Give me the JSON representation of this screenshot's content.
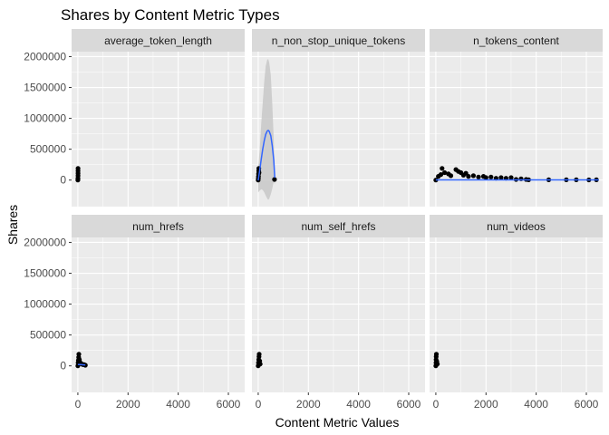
{
  "chart_data": {
    "type": "scatter",
    "title": "Shares by Content Metric Types",
    "xlabel": "Content Metric Values",
    "ylabel": "Shares",
    "xlim": [
      -250,
      6650
    ],
    "ylim": [
      -430000,
      2080000
    ],
    "x_ticks": [
      0,
      2000,
      4000,
      6000
    ],
    "y_ticks": [
      0,
      500000,
      1000000,
      1500000,
      2000000
    ],
    "layout": "facet-grid 2 rows x 3 columns, shared axes",
    "grid": true,
    "colors": {
      "panel_background": "#ebebeb",
      "strip_background": "#d9d9d9",
      "grid": "#ffffff",
      "points": "#000000",
      "smooth_line": "#3366ff",
      "confidence_band": "#c8c8c8"
    },
    "panels": [
      {
        "name": "average_token_length",
        "points": [
          [
            0,
            0
          ],
          [
            2,
            10000
          ],
          [
            4,
            30000
          ],
          [
            5,
            70000
          ],
          [
            6,
            110000
          ],
          [
            7,
            150000
          ],
          [
            8,
            190000
          ]
        ],
        "smooth": [],
        "band": []
      },
      {
        "name": "n_non_stop_unique_tokens",
        "points": [
          [
            0,
            0
          ],
          [
            5,
            30000
          ],
          [
            10,
            60000
          ],
          [
            15,
            100000
          ],
          [
            20,
            150000
          ],
          [
            25,
            190000
          ],
          [
            30,
            120000
          ],
          [
            650,
            10000
          ]
        ],
        "smooth": [
          [
            0,
            -5000
          ],
          [
            60,
            160000
          ],
          [
            120,
            330000
          ],
          [
            180,
            500000
          ],
          [
            240,
            640000
          ],
          [
            300,
            740000
          ],
          [
            360,
            795000
          ],
          [
            400,
            805000
          ],
          [
            440,
            790000
          ],
          [
            500,
            720000
          ],
          [
            560,
            560000
          ],
          [
            620,
            320000
          ],
          [
            660,
            40000
          ]
        ],
        "band": [
          [
            0,
            200000,
            -200000
          ],
          [
            60,
            500000,
            -170000
          ],
          [
            120,
            900000,
            -150000
          ],
          [
            180,
            1250000,
            -160000
          ],
          [
            240,
            1600000,
            -200000
          ],
          [
            300,
            1850000,
            -250000
          ],
          [
            360,
            1950000,
            -300000
          ],
          [
            400,
            1960000,
            -320000
          ],
          [
            440,
            1900000,
            -300000
          ],
          [
            500,
            1700000,
            -230000
          ],
          [
            560,
            1250000,
            -140000
          ],
          [
            620,
            650000,
            -20000
          ],
          [
            660,
            150000,
            -70000
          ]
        ]
      },
      {
        "name": "n_tokens_content",
        "points": [
          [
            0,
            0
          ],
          [
            100,
            60000
          ],
          [
            200,
            90000
          ],
          [
            250,
            190000
          ],
          [
            350,
            120000
          ],
          [
            500,
            100000
          ],
          [
            600,
            70000
          ],
          [
            800,
            170000
          ],
          [
            900,
            140000
          ],
          [
            1000,
            120000
          ],
          [
            1100,
            80000
          ],
          [
            1200,
            110000
          ],
          [
            1300,
            60000
          ],
          [
            1500,
            70000
          ],
          [
            1700,
            50000
          ],
          [
            1900,
            60000
          ],
          [
            2000,
            40000
          ],
          [
            2200,
            50000
          ],
          [
            2400,
            30000
          ],
          [
            2600,
            40000
          ],
          [
            2800,
            30000
          ],
          [
            3000,
            40000
          ],
          [
            3200,
            10000
          ],
          [
            3400,
            20000
          ],
          [
            3600,
            10000
          ],
          [
            3700,
            5000
          ],
          [
            4500,
            5000
          ],
          [
            5200,
            5000
          ],
          [
            5600,
            5000
          ],
          [
            6100,
            3000
          ],
          [
            6400,
            5000
          ]
        ],
        "smooth": [
          [
            0,
            3000
          ],
          [
            1000,
            3000
          ],
          [
            2000,
            3000
          ],
          [
            3000,
            3000
          ],
          [
            4000,
            3000
          ],
          [
            5000,
            3000
          ],
          [
            6000,
            3000
          ],
          [
            6500,
            3000
          ]
        ],
        "band": []
      },
      {
        "name": "num_hrefs",
        "points": [
          [
            0,
            0
          ],
          [
            10,
            50000
          ],
          [
            20,
            90000
          ],
          [
            30,
            140000
          ],
          [
            40,
            190000
          ],
          [
            60,
            100000
          ],
          [
            80,
            60000
          ],
          [
            120,
            40000
          ],
          [
            160,
            30000
          ],
          [
            200,
            20000
          ],
          [
            250,
            20000
          ],
          [
            300,
            10000
          ]
        ],
        "smooth": [
          [
            0,
            20000
          ],
          [
            100,
            20000
          ],
          [
            200,
            18000
          ],
          [
            300,
            15000
          ]
        ],
        "band": []
      },
      {
        "name": "num_self_hrefs",
        "points": [
          [
            0,
            0
          ],
          [
            10,
            50000
          ],
          [
            20,
            100000
          ],
          [
            30,
            150000
          ],
          [
            40,
            190000
          ],
          [
            60,
            80000
          ],
          [
            80,
            30000
          ]
        ],
        "smooth": [],
        "band": []
      },
      {
        "name": "num_videos",
        "points": [
          [
            0,
            0
          ],
          [
            5,
            50000
          ],
          [
            10,
            100000
          ],
          [
            15,
            150000
          ],
          [
            20,
            190000
          ],
          [
            40,
            70000
          ],
          [
            60,
            30000
          ]
        ],
        "smooth": [],
        "band": []
      }
    ]
  }
}
